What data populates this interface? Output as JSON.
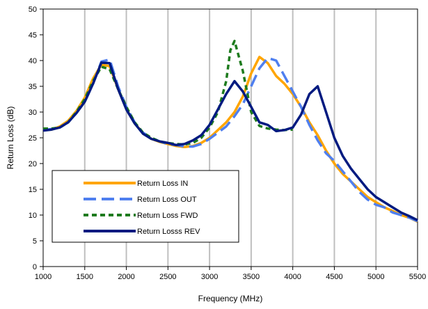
{
  "chart_data": {
    "type": "line",
    "title": "",
    "xlabel": "Frequency (MHz)",
    "ylabel": "Return Loss (dB)",
    "xlim": [
      1000,
      5500
    ],
    "ylim": [
      0,
      50
    ],
    "xticks": [
      1000,
      1500,
      2000,
      2500,
      3000,
      3500,
      4000,
      4500,
      5000,
      5500
    ],
    "yticks": [
      0,
      5,
      10,
      15,
      20,
      25,
      30,
      35,
      40,
      45,
      50
    ],
    "grid": "vertical",
    "legend": "bottom-left",
    "series": [
      {
        "name": "Return Loss IN",
        "color": "#FFA500",
        "dash": "solid",
        "points": [
          [
            1000,
            26.5
          ],
          [
            1100,
            26.6
          ],
          [
            1200,
            27.2
          ],
          [
            1300,
            28.3
          ],
          [
            1400,
            30.2
          ],
          [
            1500,
            32.8
          ],
          [
            1600,
            36.5
          ],
          [
            1700,
            39.2
          ],
          [
            1800,
            38.9
          ],
          [
            1900,
            34.5
          ],
          [
            2000,
            30.6
          ],
          [
            2100,
            27.8
          ],
          [
            2200,
            25.9
          ],
          [
            2300,
            24.8
          ],
          [
            2400,
            24.2
          ],
          [
            2500,
            23.8
          ],
          [
            2600,
            23.4
          ],
          [
            2700,
            23.2
          ],
          [
            2800,
            23.4
          ],
          [
            2900,
            24.0
          ],
          [
            3000,
            25.0
          ],
          [
            3100,
            26.5
          ],
          [
            3200,
            28.0
          ],
          [
            3300,
            30.0
          ],
          [
            3400,
            33.0
          ],
          [
            3500,
            37.5
          ],
          [
            3600,
            40.7
          ],
          [
            3700,
            39.5
          ],
          [
            3800,
            37.0
          ],
          [
            3900,
            35.5
          ],
          [
            4000,
            33.5
          ],
          [
            4100,
            31.0
          ],
          [
            4200,
            28.0
          ],
          [
            4300,
            25.5
          ],
          [
            4400,
            22.5
          ],
          [
            4500,
            20.0
          ],
          [
            4600,
            18.0
          ],
          [
            4700,
            16.5
          ],
          [
            4800,
            15.0
          ],
          [
            4900,
            13.5
          ],
          [
            5000,
            12.5
          ],
          [
            5100,
            11.5
          ],
          [
            5200,
            10.8
          ],
          [
            5300,
            10.0
          ],
          [
            5400,
            9.5
          ],
          [
            5500,
            8.7
          ]
        ]
      },
      {
        "name": "Return Loss OUT",
        "color": "#4F7FEF",
        "dash": "long",
        "points": [
          [
            1000,
            26.5
          ],
          [
            1100,
            26.7
          ],
          [
            1200,
            27.0
          ],
          [
            1300,
            28.0
          ],
          [
            1400,
            29.8
          ],
          [
            1500,
            32.0
          ],
          [
            1600,
            35.5
          ],
          [
            1700,
            39.8
          ],
          [
            1800,
            40.2
          ],
          [
            1900,
            35.0
          ],
          [
            2000,
            31.0
          ],
          [
            2100,
            28.0
          ],
          [
            2200,
            26.0
          ],
          [
            2300,
            25.0
          ],
          [
            2400,
            24.3
          ],
          [
            2500,
            23.8
          ],
          [
            2600,
            23.6
          ],
          [
            2700,
            23.3
          ],
          [
            2800,
            23.3
          ],
          [
            2900,
            23.8
          ],
          [
            3000,
            24.8
          ],
          [
            3100,
            26.0
          ],
          [
            3200,
            27.2
          ],
          [
            3300,
            29.2
          ],
          [
            3400,
            31.5
          ],
          [
            3500,
            35.0
          ],
          [
            3600,
            38.5
          ],
          [
            3700,
            40.5
          ],
          [
            3800,
            40.0
          ],
          [
            3900,
            37.0
          ],
          [
            4000,
            34.0
          ],
          [
            4100,
            31.0
          ],
          [
            4200,
            27.5
          ],
          [
            4300,
            24.5
          ],
          [
            4400,
            22.0
          ],
          [
            4500,
            20.5
          ],
          [
            4600,
            18.5
          ],
          [
            4700,
            16.5
          ],
          [
            4800,
            14.5
          ],
          [
            4900,
            13.0
          ],
          [
            5000,
            12.0
          ],
          [
            5100,
            11.5
          ],
          [
            5200,
            10.5
          ],
          [
            5300,
            10.0
          ],
          [
            5400,
            9.5
          ],
          [
            5500,
            8.8
          ]
        ]
      },
      {
        "name": "Return Loss FWD",
        "color": "#1E7B1E",
        "dash": "short",
        "points": [
          [
            1000,
            26.8
          ],
          [
            1100,
            26.8
          ],
          [
            1200,
            27.0
          ],
          [
            1300,
            28.0
          ],
          [
            1400,
            30.0
          ],
          [
            1500,
            32.5
          ],
          [
            1600,
            36.0
          ],
          [
            1700,
            38.8
          ],
          [
            1800,
            38.3
          ],
          [
            1900,
            34.5
          ],
          [
            2000,
            31.0
          ],
          [
            2100,
            28.0
          ],
          [
            2200,
            26.0
          ],
          [
            2300,
            25.0
          ],
          [
            2400,
            24.3
          ],
          [
            2500,
            24.0
          ],
          [
            2600,
            23.8
          ],
          [
            2700,
            23.7
          ],
          [
            2800,
            24.0
          ],
          [
            2900,
            25.0
          ],
          [
            3000,
            27.0
          ],
          [
            3100,
            30.0
          ],
          [
            3200,
            36.0
          ],
          [
            3250,
            42.0
          ],
          [
            3300,
            43.8
          ],
          [
            3400,
            38.0
          ],
          [
            3500,
            30.0
          ],
          [
            3600,
            27.3
          ],
          [
            3700,
            26.8
          ],
          [
            3800,
            26.6
          ],
          [
            3900,
            26.5
          ],
          [
            4000,
            26.6
          ]
        ]
      },
      {
        "name": "Return Losss REV",
        "color": "#001A80",
        "dash": "solid",
        "points": [
          [
            1000,
            26.4
          ],
          [
            1100,
            26.6
          ],
          [
            1200,
            27.0
          ],
          [
            1300,
            28.0
          ],
          [
            1400,
            29.8
          ],
          [
            1500,
            32.0
          ],
          [
            1600,
            35.5
          ],
          [
            1700,
            39.6
          ],
          [
            1800,
            39.5
          ],
          [
            1900,
            34.5
          ],
          [
            2000,
            30.5
          ],
          [
            2100,
            27.8
          ],
          [
            2200,
            25.8
          ],
          [
            2300,
            24.8
          ],
          [
            2400,
            24.3
          ],
          [
            2500,
            24.0
          ],
          [
            2600,
            23.6
          ],
          [
            2700,
            23.8
          ],
          [
            2800,
            24.5
          ],
          [
            2900,
            25.5
          ],
          [
            3000,
            27.5
          ],
          [
            3100,
            30.5
          ],
          [
            3200,
            33.5
          ],
          [
            3300,
            36.0
          ],
          [
            3400,
            34.0
          ],
          [
            3500,
            31.0
          ],
          [
            3600,
            28.0
          ],
          [
            3700,
            27.5
          ],
          [
            3800,
            26.3
          ],
          [
            3900,
            26.5
          ],
          [
            4000,
            27.0
          ],
          [
            4100,
            29.5
          ],
          [
            4200,
            33.5
          ],
          [
            4300,
            35.0
          ],
          [
            4400,
            30.0
          ],
          [
            4500,
            25.0
          ],
          [
            4600,
            21.5
          ],
          [
            4700,
            19.0
          ],
          [
            4800,
            17.0
          ],
          [
            4900,
            15.0
          ],
          [
            5000,
            13.5
          ],
          [
            5100,
            12.5
          ],
          [
            5200,
            11.5
          ],
          [
            5300,
            10.5
          ],
          [
            5400,
            9.8
          ],
          [
            5500,
            9.0
          ]
        ]
      }
    ]
  }
}
